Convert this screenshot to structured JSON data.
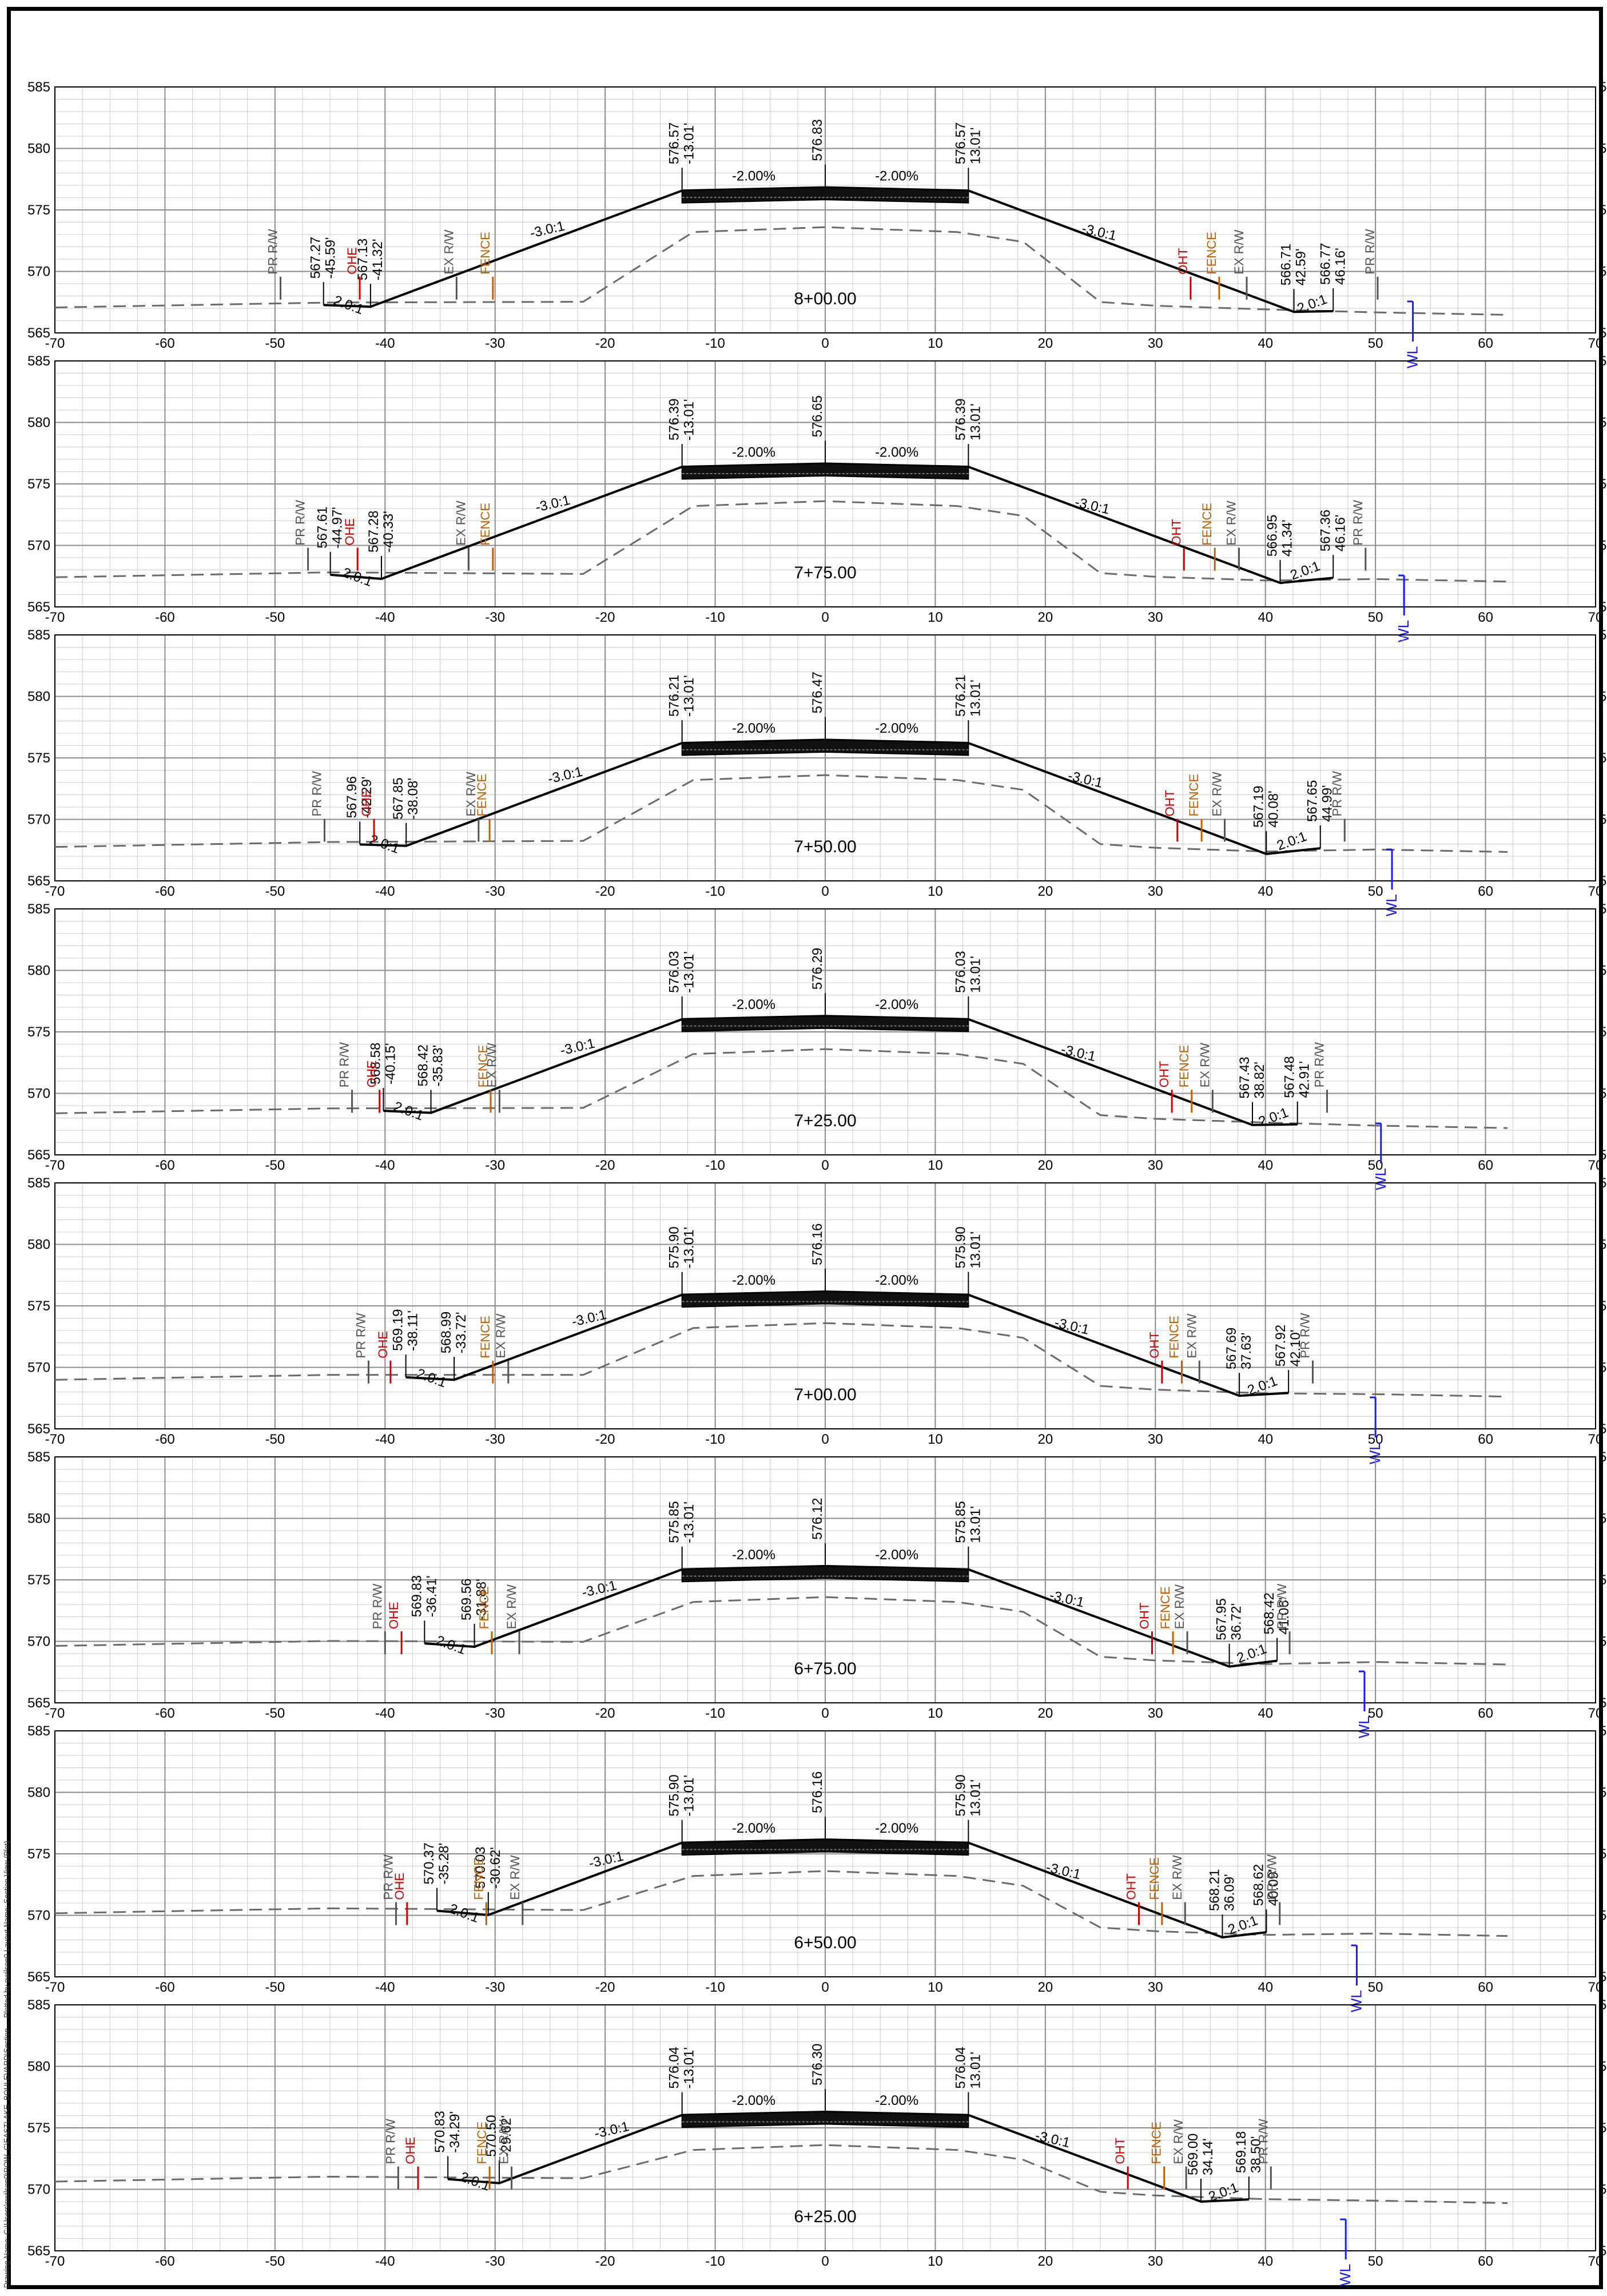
{
  "side_text": "Drawing Name: C:\\Users\\pwilson0\\ROW_C\\EASTLAKE_BOULEVARD\\Section ... Plotted by pwilson0  Layout Name: Section View (Plot)",
  "grid": {
    "x_min": -70,
    "x_max": 70,
    "x_step": 10,
    "y_min": 565,
    "y_max": 585,
    "y_step": 5
  },
  "colors": {
    "profile": "#000000",
    "existing_ground": "#6b6b6b",
    "grid_major": "#8c8c8c",
    "grid_minor": "#cccccc",
    "ohe": "#d40000",
    "fence": "#c06000",
    "ex_row": "#555555",
    "wl": "#1a1aff"
  },
  "sections": [
    {
      "station": "8+00.00",
      "top": {
        "cl_elev": "576.83",
        "lt_elev": "576.57",
        "lt_off": "-13.01'",
        "rt_elev": "576.57",
        "rt_off": "13.01'"
      },
      "cross_slope_lt": "-2.00%",
      "cross_slope_rt": "-2.00%",
      "fore_slope_lt": "-3.0:1",
      "fore_slope_rt": "-3.0:1",
      "left_toe": {
        "elev": "567.27",
        "off": "-45.59'"
      },
      "left_ditch": {
        "elev": "567.13",
        "off": "-41.32'"
      },
      "right_toe": {
        "elev": "566.71",
        "off": "42.59'"
      },
      "right_ditch": {
        "elev": "566.77",
        "off": "46.16'"
      },
      "left_ditch_slope": "2.0:1",
      "right_ditch_slope": "2.0:1",
      "features": [
        {
          "type": "PR R/W",
          "x": -49.5
        },
        {
          "type": "OHE",
          "x": -42.3
        },
        {
          "type": "EX R/W",
          "x": -33.5
        },
        {
          "type": "FENCE",
          "x": -30.2
        },
        {
          "type": "OHT",
          "x": 33.2
        },
        {
          "type": "FENCE",
          "x": 35.8
        },
        {
          "type": "EX R/W",
          "x": 38.3
        },
        {
          "type": "PR R/W",
          "x": 50.2
        },
        {
          "type": "WL",
          "x": 53.4
        }
      ]
    },
    {
      "station": "7+75.00",
      "top": {
        "cl_elev": "576.65",
        "lt_elev": "576.39",
        "lt_off": "-13.01'",
        "rt_elev": "576.39",
        "rt_off": "13.01'"
      },
      "cross_slope_lt": "-2.00%",
      "cross_slope_rt": "-2.00%",
      "fore_slope_lt": "-3.0:1",
      "fore_slope_rt": "-3.0:1",
      "left_toe": {
        "elev": "567.61",
        "off": "-44.97'"
      },
      "left_ditch": {
        "elev": "567.28",
        "off": "-40.33'"
      },
      "right_toe": {
        "elev": "566.95",
        "off": "41.34'"
      },
      "right_ditch": {
        "elev": "567.36",
        "off": "46.16'"
      },
      "left_ditch_slope": "2.0:1",
      "right_ditch_slope": "2.0:1",
      "features": [
        {
          "type": "PR R/W",
          "x": -47.0
        },
        {
          "type": "OHE",
          "x": -42.5
        },
        {
          "type": "EX R/W",
          "x": -32.4
        },
        {
          "type": "FENCE",
          "x": -30.2
        },
        {
          "type": "OHT",
          "x": 32.6
        },
        {
          "type": "FENCE",
          "x": 35.4
        },
        {
          "type": "EX R/W",
          "x": 37.6
        },
        {
          "type": "PR R/W",
          "x": 49.1
        },
        {
          "type": "WL",
          "x": 52.6
        }
      ]
    },
    {
      "station": "7+50.00",
      "top": {
        "cl_elev": "576.47",
        "lt_elev": "576.21",
        "lt_off": "-13.01'",
        "rt_elev": "576.21",
        "rt_off": "13.01'"
      },
      "cross_slope_lt": "-2.00%",
      "cross_slope_rt": "-2.00%",
      "fore_slope_lt": "-3.0:1",
      "fore_slope_rt": "-3.0:1",
      "left_toe": {
        "elev": "567.96",
        "off": "-42.29'"
      },
      "left_ditch": {
        "elev": "567.85",
        "off": "-38.08'"
      },
      "right_toe": {
        "elev": "567.19",
        "off": "40.08'"
      },
      "right_ditch": {
        "elev": "567.65",
        "off": "44.99'"
      },
      "left_ditch_slope": "2.0:1",
      "right_ditch_slope": "2.0:1",
      "features": [
        {
          "type": "PR R/W",
          "x": -45.5
        },
        {
          "type": "OHE",
          "x": -41.0
        },
        {
          "type": "EX R/W",
          "x": -31.5
        },
        {
          "type": "FENCE",
          "x": -30.5
        },
        {
          "type": "OHT",
          "x": 32.0
        },
        {
          "type": "FENCE",
          "x": 34.2
        },
        {
          "type": "EX R/W",
          "x": 36.3
        },
        {
          "type": "PR R/W",
          "x": 47.2
        },
        {
          "type": "WL",
          "x": 51.5
        }
      ]
    },
    {
      "station": "7+25.00",
      "top": {
        "cl_elev": "576.29",
        "lt_elev": "576.03",
        "lt_off": "-13.01'",
        "rt_elev": "576.03",
        "rt_off": "13.01'"
      },
      "cross_slope_lt": "-2.00%",
      "cross_slope_rt": "-2.00%",
      "fore_slope_lt": "-3.0:1",
      "fore_slope_rt": "-3.0:1",
      "left_toe": {
        "elev": "568.58",
        "off": "-40.15'"
      },
      "left_ditch": {
        "elev": "568.42",
        "off": "-35.83'"
      },
      "right_toe": {
        "elev": "567.43",
        "off": "38.82'"
      },
      "right_ditch": {
        "elev": "567.48",
        "off": "42.91'"
      },
      "left_ditch_slope": "2.0:1",
      "right_ditch_slope": "2.0:1",
      "features": [
        {
          "type": "PR R/W",
          "x": -43.0
        },
        {
          "type": "OHE",
          "x": -40.5
        },
        {
          "type": "FENCE",
          "x": -30.4
        },
        {
          "type": "EX R/W",
          "x": -29.6
        },
        {
          "type": "OHT",
          "x": 31.5
        },
        {
          "type": "FENCE",
          "x": 33.3
        },
        {
          "type": "EX R/W",
          "x": 35.2
        },
        {
          "type": "PR R/W",
          "x": 45.6
        },
        {
          "type": "WL",
          "x": 50.5
        }
      ]
    },
    {
      "station": "7+00.00",
      "top": {
        "cl_elev": "576.16",
        "lt_elev": "575.90",
        "lt_off": "-13.01'",
        "rt_elev": "575.90",
        "rt_off": "13.01'"
      },
      "cross_slope_lt": "-2.00%",
      "cross_slope_rt": "-2.00%",
      "fore_slope_lt": "-3.0:1",
      "fore_slope_rt": "-3.0:1",
      "left_toe": {
        "elev": "569.19",
        "off": "-38.11'"
      },
      "left_ditch": {
        "elev": "568.99",
        "off": "-33.72'"
      },
      "right_toe": {
        "elev": "567.69",
        "off": "37.63'"
      },
      "right_ditch": {
        "elev": "567.92",
        "off": "42.10'"
      },
      "left_ditch_slope": "2.0:1",
      "right_ditch_slope": "2.0:1",
      "features": [
        {
          "type": "PR R/W",
          "x": -41.5
        },
        {
          "type": "OHE",
          "x": -39.5
        },
        {
          "type": "FENCE",
          "x": -30.2
        },
        {
          "type": "EX R/W",
          "x": -28.8
        },
        {
          "type": "OHT",
          "x": 30.6
        },
        {
          "type": "FENCE",
          "x": 32.4
        },
        {
          "type": "EX R/W",
          "x": 34.0
        },
        {
          "type": "PR R/W",
          "x": 44.3
        },
        {
          "type": "WL",
          "x": 50.0
        }
      ]
    },
    {
      "station": "6+75.00",
      "top": {
        "cl_elev": "576.12",
        "lt_elev": "575.85",
        "lt_off": "-13.01'",
        "rt_elev": "575.85",
        "rt_off": "13.01'"
      },
      "cross_slope_lt": "-2.00%",
      "cross_slope_rt": "-2.00%",
      "fore_slope_lt": "-3.0:1",
      "fore_slope_rt": "-3.0:1",
      "left_toe": {
        "elev": "569.83",
        "off": "-36.41'"
      },
      "left_ditch": {
        "elev": "569.56",
        "off": "-31.88'"
      },
      "right_toe": {
        "elev": "567.95",
        "off": "36.72'"
      },
      "right_ditch": {
        "elev": "568.42",
        "off": "41.06'"
      },
      "left_ditch_slope": "2.0:1",
      "right_ditch_slope": "2.0:1",
      "features": [
        {
          "type": "PR R/W",
          "x": -40.0
        },
        {
          "type": "OHE",
          "x": -38.5
        },
        {
          "type": "FENCE",
          "x": -30.3
        },
        {
          "type": "EX R/W",
          "x": -27.8
        },
        {
          "type": "OHT",
          "x": 29.7
        },
        {
          "type": "FENCE",
          "x": 31.6
        },
        {
          "type": "EX R/W",
          "x": 32.9
        },
        {
          "type": "PR R/W",
          "x": 42.2
        },
        {
          "type": "WL",
          "x": 49.0
        }
      ]
    },
    {
      "station": "6+50.00",
      "top": {
        "cl_elev": "576.16",
        "lt_elev": "575.90",
        "lt_off": "-13.01'",
        "rt_elev": "575.90",
        "rt_off": "13.01'"
      },
      "cross_slope_lt": "-2.00%",
      "cross_slope_rt": "-2.00%",
      "fore_slope_lt": "-3.0:1",
      "fore_slope_rt": "-3.0:1",
      "left_toe": {
        "elev": "570.37",
        "off": "-35.28'"
      },
      "left_ditch": {
        "elev": "570.03",
        "off": "-30.62'"
      },
      "right_toe": {
        "elev": "568.21",
        "off": "36.09'"
      },
      "right_ditch": {
        "elev": "568.62",
        "off": "40.09'"
      },
      "left_ditch_slope": "2.0:1",
      "right_ditch_slope": "2.0:1",
      "features": [
        {
          "type": "PR R/W",
          "x": -39.0
        },
        {
          "type": "OHE",
          "x": -38.0
        },
        {
          "type": "FENCE",
          "x": -30.8
        },
        {
          "type": "EX R/W",
          "x": -27.5
        },
        {
          "type": "OHT",
          "x": 28.5
        },
        {
          "type": "FENCE",
          "x": 30.6
        },
        {
          "type": "EX R/W",
          "x": 32.7
        },
        {
          "type": "PR R/W",
          "x": 41.3
        },
        {
          "type": "WL",
          "x": 48.3
        }
      ]
    },
    {
      "station": "6+25.00",
      "top": {
        "cl_elev": "576.30",
        "lt_elev": "576.04",
        "lt_off": "-13.01'",
        "rt_elev": "576.04",
        "rt_off": "13.01'"
      },
      "cross_slope_lt": "-2.00%",
      "cross_slope_rt": "-2.00%",
      "fore_slope_lt": "-3.0:1",
      "fore_slope_rt": "-3.0:1",
      "left_toe": {
        "elev": "570.83",
        "off": "-34.29'"
      },
      "left_ditch": {
        "elev": "570.50",
        "off": "-29.62'"
      },
      "right_toe": {
        "elev": "569.00",
        "off": "34.14'"
      },
      "right_ditch": {
        "elev": "569.18",
        "off": "38.50'"
      },
      "left_ditch_slope": "2.0:1",
      "right_ditch_slope": "2.0:1",
      "features": [
        {
          "type": "PR R/W",
          "x": -38.8
        },
        {
          "type": "OHE",
          "x": -37.0
        },
        {
          "type": "FENCE",
          "x": -30.5
        },
        {
          "type": "EX R/W",
          "x": -28.5
        },
        {
          "type": "OHT",
          "x": 27.5
        },
        {
          "type": "FENCE",
          "x": 30.8
        },
        {
          "type": "EX R/W",
          "x": 32.8
        },
        {
          "type": "PR R/W",
          "x": 40.5
        },
        {
          "type": "WL",
          "x": 47.3
        }
      ]
    }
  ]
}
